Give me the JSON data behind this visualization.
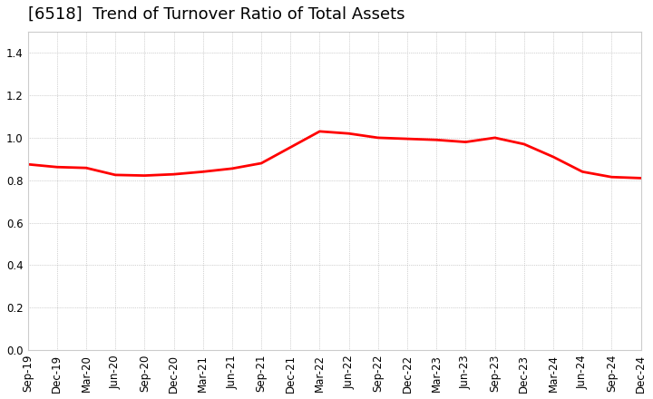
{
  "title": "[6518]  Trend of Turnover Ratio of Total Assets",
  "x_labels": [
    "Sep-19",
    "Dec-19",
    "Mar-20",
    "Jun-20",
    "Sep-20",
    "Dec-20",
    "Mar-21",
    "Jun-21",
    "Sep-21",
    "Dec-21",
    "Mar-22",
    "Jun-22",
    "Sep-22",
    "Dec-22",
    "Mar-23",
    "Jun-23",
    "Sep-23",
    "Dec-23",
    "Mar-24",
    "Jun-24",
    "Sep-24",
    "Dec-24"
  ],
  "y_values": [
    0.875,
    0.862,
    0.858,
    0.825,
    0.822,
    0.828,
    0.84,
    0.855,
    0.88,
    0.955,
    1.03,
    1.02,
    1.0,
    0.995,
    0.99,
    0.98,
    1.0,
    0.97,
    0.91,
    0.84,
    0.815,
    0.81
  ],
  "line_color": "#FF0000",
  "background_color": "#FFFFFF",
  "grid_color": "#AAAAAA",
  "ylim": [
    0.0,
    1.5
  ],
  "yticks": [
    0.0,
    0.2,
    0.4,
    0.6,
    0.8,
    1.0,
    1.2,
    1.4
  ],
  "title_fontsize": 13,
  "tick_fontsize": 8.5
}
